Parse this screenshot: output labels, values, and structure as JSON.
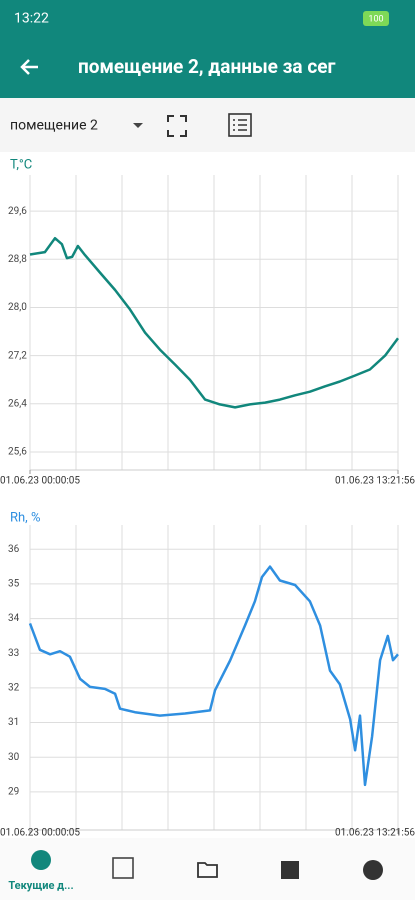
{
  "status": {
    "time": "13:22",
    "battery": "100"
  },
  "header": {
    "title": "помещение 2, данные за сег"
  },
  "toolbar": {
    "selector": "помещение 2"
  },
  "chart_data": [
    {
      "type": "line",
      "ylabel": "T,°C",
      "color": "#11877c",
      "x": [
        0,
        0.54,
        0.91,
        1.16,
        1.34,
        1.53,
        1.74,
        2.0,
        2.54,
        3.09,
        3.63,
        4.18,
        4.72,
        5.27,
        5.81,
        6.36,
        6.9,
        7.45,
        7.99,
        8.54,
        9.08,
        9.63,
        10.17,
        10.72,
        11.26,
        11.81,
        12.35,
        12.9,
        13.37
      ],
      "values": [
        28.88,
        28.92,
        29.15,
        29.05,
        28.82,
        28.84,
        29.02,
        28.87,
        28.58,
        28.29,
        27.97,
        27.58,
        27.3,
        27.05,
        26.8,
        26.47,
        26.39,
        26.34,
        26.39,
        26.42,
        26.47,
        26.54,
        26.6,
        26.69,
        26.77,
        26.87,
        26.97,
        27.2,
        27.49
      ],
      "xlim": [
        0,
        13.37
      ],
      "xticks": [
        {
          "value": 0,
          "label": "01.06.23 00:00:05"
        },
        {
          "value": 13.37,
          "label": "01.06.23 13:21:56"
        }
      ],
      "ylim": [
        25.3,
        30.2
      ],
      "yticks": [
        {
          "value": 25.6,
          "label": "25,6"
        },
        {
          "value": 26.4,
          "label": "26,4"
        },
        {
          "value": 27.2,
          "label": "27,2"
        },
        {
          "value": 28.0,
          "label": "28,0"
        },
        {
          "value": 28.8,
          "label": "28,8"
        },
        {
          "value": 29.6,
          "label": "29,6"
        }
      ]
    },
    {
      "type": "line",
      "ylabel": "Rh, %",
      "color": "#2f8fe0",
      "x": [
        0,
        0.36,
        0.73,
        1.09,
        1.45,
        1.82,
        2.18,
        2.72,
        3.09,
        3.27,
        3.81,
        4.72,
        5.63,
        6.54,
        6.72,
        7.27,
        7.81,
        8.17,
        8.43,
        8.72,
        9.08,
        9.63,
        10.17,
        10.54,
        10.9,
        11.26,
        11.63,
        11.81,
        11.99,
        12.17,
        12.43,
        12.72,
        13.0,
        13.19,
        13.37
      ],
      "values": [
        33.86,
        33.1,
        32.97,
        33.06,
        32.9,
        32.26,
        32.03,
        31.97,
        31.83,
        31.4,
        31.3,
        31.2,
        31.26,
        31.35,
        31.93,
        32.79,
        33.8,
        34.5,
        35.2,
        35.5,
        35.1,
        34.97,
        34.5,
        33.8,
        32.5,
        32.1,
        31.1,
        30.2,
        31.2,
        29.2,
        30.6,
        32.8,
        33.5,
        32.8,
        32.97
      ],
      "xlim": [
        0,
        13.37
      ],
      "xticks": [
        {
          "value": 0,
          "label": "01.06.23 00:00:05"
        },
        {
          "value": 13.37,
          "label": "01.06.23 13:21:56"
        }
      ],
      "ylim": [
        27.9,
        36.7
      ],
      "yticks": [
        29,
        30,
        31,
        32,
        33,
        34,
        35,
        36
      ]
    }
  ],
  "nav": {
    "current": "Текущие д..."
  }
}
